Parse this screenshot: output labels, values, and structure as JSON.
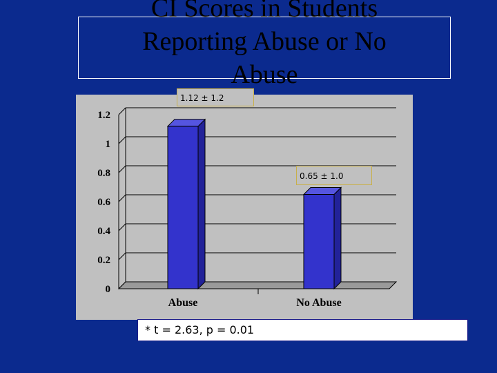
{
  "slide": {
    "title": "CI Scores in Students\nReporting Abuse or No\nAbuse",
    "callouts": {
      "abuse": "1.12 ± 1.2",
      "no_abuse": "0.65 ± 1.0"
    },
    "stat": "* t = 2.63, p = 0.01"
  },
  "colors": {
    "background": "#0b2a8e",
    "panel": "#c0c0c0",
    "bar_front": "#3333cc",
    "bar_side": "#222299",
    "bar_top": "#5555e0"
  },
  "chart_data": {
    "type": "bar",
    "categories": [
      "Abuse",
      "No Abuse"
    ],
    "values": [
      1.12,
      0.65
    ],
    "ylim": [
      0,
      1.2
    ],
    "yticks": [
      0,
      0.2,
      0.4,
      0.6,
      0.8,
      1,
      1.2
    ],
    "ytick_labels": [
      "0",
      "0.2",
      "0.4",
      "0.6",
      "0.8",
      "1",
      "1.2"
    ],
    "grid": true,
    "style": "3d"
  }
}
